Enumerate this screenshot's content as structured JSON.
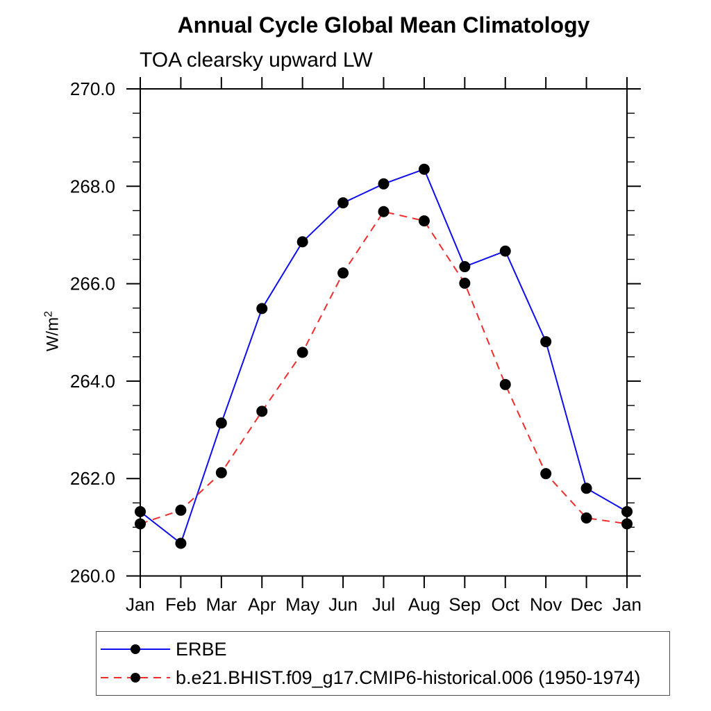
{
  "chart_data": {
    "type": "line",
    "title": "Annual Cycle Global Mean Climatology",
    "subtitle": "TOA clearsky upward LW",
    "ylabel_base": "W/m",
    "ylabel_exponent": "2",
    "categories": [
      "Jan",
      "Feb",
      "Mar",
      "Apr",
      "May",
      "Jun",
      "Jul",
      "Aug",
      "Sep",
      "Oct",
      "Nov",
      "Dec",
      "Jan"
    ],
    "ylim": [
      260.0,
      270.0
    ],
    "ytick_major": [
      260.0,
      262.0,
      264.0,
      266.0,
      268.0,
      270.0
    ],
    "ytick_minor_step": 0.5,
    "ytick_label_decimals": 1,
    "grid": false,
    "legend_position": "bottom-left-box",
    "axis_color": "#000000",
    "series": [
      {
        "name": "ERBE",
        "color": "#0d0dee",
        "style": "solid",
        "marker": "filled-circle",
        "marker_color": "#000000",
        "values": [
          261.32,
          260.67,
          263.14,
          265.49,
          266.86,
          267.66,
          268.05,
          268.35,
          266.35,
          266.67,
          264.81,
          261.8,
          261.32
        ]
      },
      {
        "name": "b.e21.BHIST.f09_g17.CMIP6-historical.006 (1950-1974)",
        "color": "#f32b2b",
        "style": "dashed",
        "marker": "filled-circle",
        "marker_color": "#000000",
        "values": [
          261.07,
          261.35,
          262.12,
          263.38,
          264.59,
          266.22,
          267.48,
          267.29,
          266.01,
          263.93,
          262.1,
          261.19,
          261.07
        ]
      }
    ]
  }
}
